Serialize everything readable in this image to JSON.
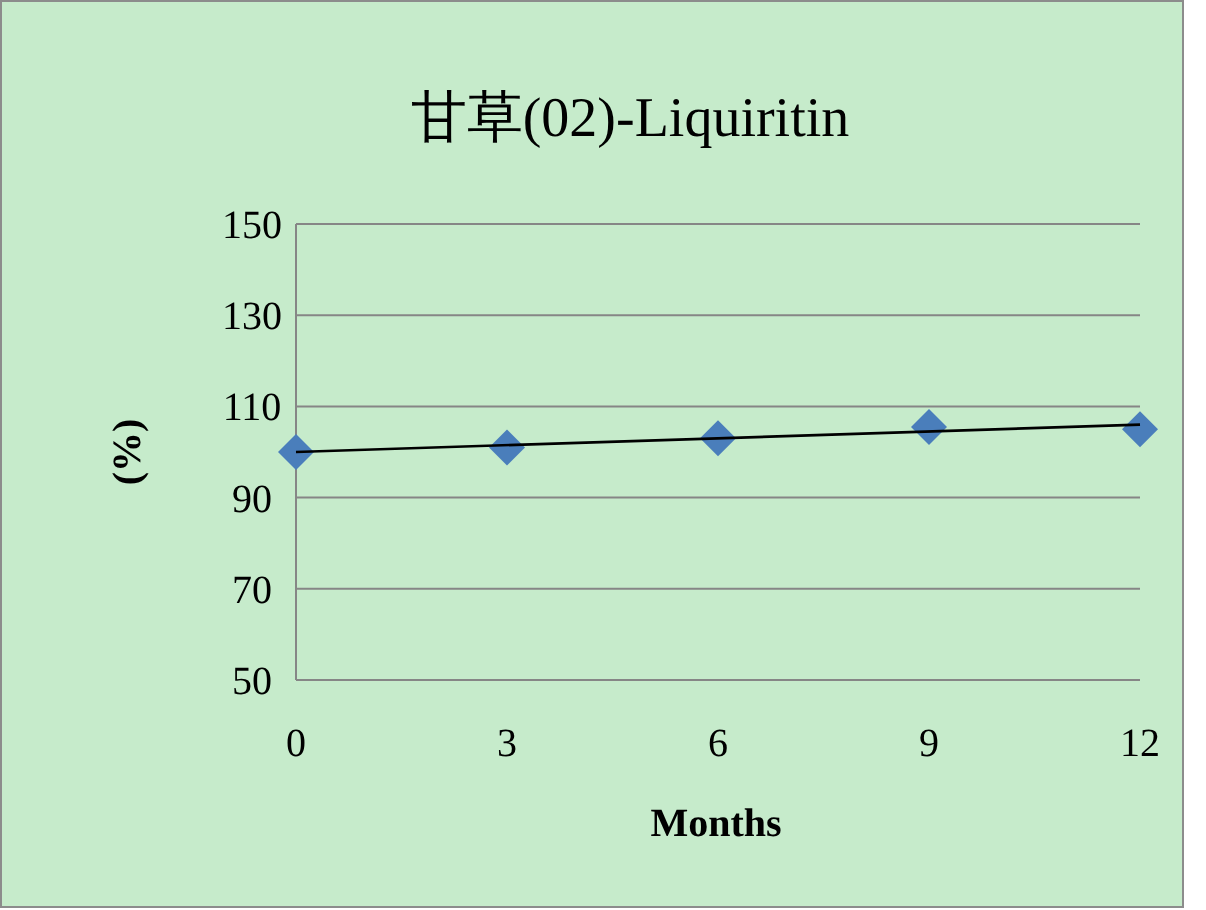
{
  "chart_data": {
    "type": "scatter",
    "title": "甘草(02)-Liquiritin",
    "xlabel": "Months",
    "ylabel": "(%)",
    "xlim": [
      0,
      12
    ],
    "xticks": [
      0,
      3,
      6,
      9,
      12
    ],
    "ylim": [
      50,
      150
    ],
    "yticks": [
      50,
      70,
      90,
      110,
      130,
      150
    ],
    "grid": "y",
    "marker": "diamond",
    "series": [
      {
        "type": "scatter",
        "color": "#4a7ebb",
        "x": [
          0,
          3,
          6,
          9,
          12
        ],
        "values": [
          100,
          101,
          103,
          105.5,
          105
        ]
      },
      {
        "type": "line",
        "color": "#000000",
        "marker": "none",
        "x": [
          0,
          12
        ],
        "values": [
          100,
          106
        ]
      }
    ]
  }
}
